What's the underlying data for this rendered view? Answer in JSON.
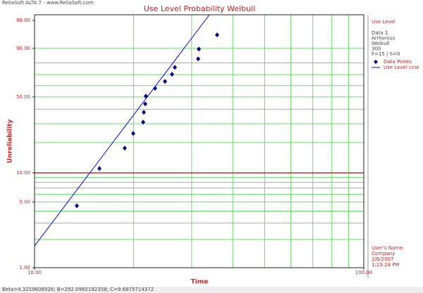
{
  "header": "ReliaSoft ALTA 7 - www.ReliaSoft.com",
  "footnote": "Beta=4.3219608926; B=292.0965192358; C=9.6875714372",
  "panel": {
    "heading": "Use Level",
    "lines": [
      "Data 1",
      "Arrhenius",
      "Weibull",
      "300",
      "F=15 | S=0"
    ],
    "footer": [
      "User's Name",
      "Company",
      "2/6/2007",
      "1:13:24 PM"
    ]
  },
  "chart_data": {
    "type": "scatter",
    "title": "Use Level Probability Weibull",
    "x_label": "Time",
    "y_label": "Unreliability",
    "x_scale": "log",
    "y_scale": "weibull",
    "xlim": [
      10,
      100
    ],
    "ylim": [
      1,
      99.5
    ],
    "xticks": [
      {
        "value": 10,
        "label": "10.00"
      },
      {
        "value": 100,
        "label": "100.00"
      }
    ],
    "yticks": [
      {
        "value": 1,
        "label": "1.00"
      },
      {
        "value": 5,
        "label": "5.00"
      },
      {
        "value": 10,
        "label": "10.00"
      },
      {
        "value": 50,
        "label": "50.00"
      },
      {
        "value": 90,
        "label": "90.00"
      },
      {
        "value": 99,
        "label": "99.00"
      }
    ],
    "xgrid": [
      20,
      30,
      40,
      50,
      60,
      70,
      80,
      90
    ],
    "ygrid": [
      2,
      3,
      4,
      5,
      6,
      7,
      8,
      9,
      20,
      30,
      40,
      50,
      60,
      70,
      80,
      90
    ],
    "grid_color": "#66dd66",
    "reference_lines": [
      {
        "value": 10,
        "color": "#cc0000"
      }
    ],
    "series": [
      {
        "name": "Data Points",
        "color": "#00008b",
        "marker": "diamond",
        "x": [
          13.44,
          15.74,
          18.79,
          19.94,
          21.37,
          21.47,
          21.69,
          21.79,
          23.23,
          24.9,
          26.16,
          26.68,
          31.4,
          31.55,
          35.86
        ],
        "values": [
          4.55,
          11.06,
          17.67,
          24.44,
          30.93,
          37.65,
          44.1,
          50.6,
          57.5,
          63.8,
          70.2,
          76.3,
          83.1,
          89.6,
          96.0
        ]
      },
      {
        "name": "Use Level Line",
        "color": "#0000ff",
        "marker": "line",
        "x": [
          10,
          33.97
        ],
        "values": [
          1.71,
          99.5
        ]
      }
    ]
  }
}
